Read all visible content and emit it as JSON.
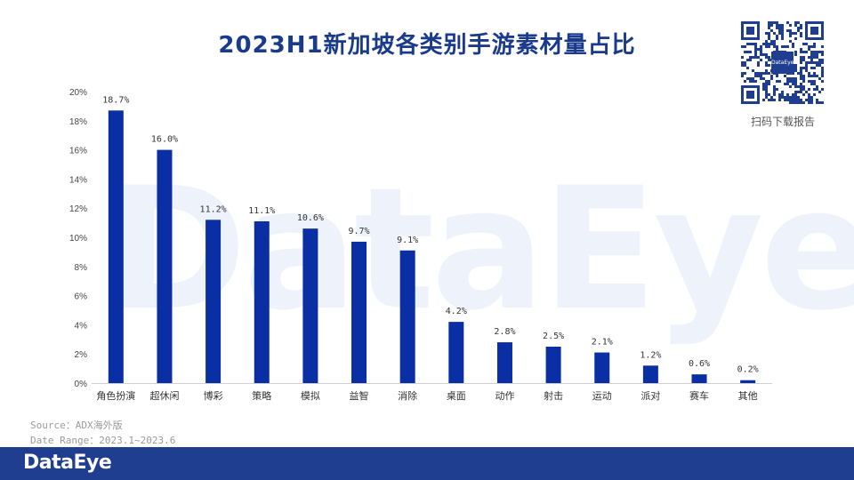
{
  "title": "2023H1新加坡各类别手游素材量占比",
  "watermark": "DataEye",
  "qr_caption": "扫码下载报告",
  "qr_logo": "DataEye",
  "source_line1": "Source：ADX海外版",
  "source_line2": "Date Range：2023.1~2023.6",
  "footer_logo": "DataEye",
  "colors": {
    "bar": "#0a2ea3",
    "title": "#1a3a8c",
    "footer": "#1f3e8f"
  },
  "chart_data": {
    "type": "bar",
    "categories": [
      "角色扮演",
      "超休闲",
      "博彩",
      "策略",
      "模拟",
      "益智",
      "消除",
      "桌面",
      "动作",
      "射击",
      "运动",
      "派对",
      "赛车",
      "其他"
    ],
    "values": [
      18.7,
      16.0,
      11.2,
      11.1,
      10.6,
      9.7,
      9.1,
      4.2,
      2.8,
      2.5,
      2.1,
      1.2,
      0.6,
      0.2
    ],
    "data_labels": [
      "18.7%",
      "16.0%",
      "11.2%",
      "11.1%",
      "10.6%",
      "9.7%",
      "9.1%",
      "4.2%",
      "2.8%",
      "2.5%",
      "2.1%",
      "1.2%",
      "0.6%",
      "0.2%"
    ],
    "yticks": [
      "0%",
      "2%",
      "4%",
      "6%",
      "8%",
      "10%",
      "12%",
      "14%",
      "16%",
      "18%",
      "20%"
    ],
    "ylim": [
      0,
      20
    ],
    "grid": false,
    "legend": "none"
  }
}
